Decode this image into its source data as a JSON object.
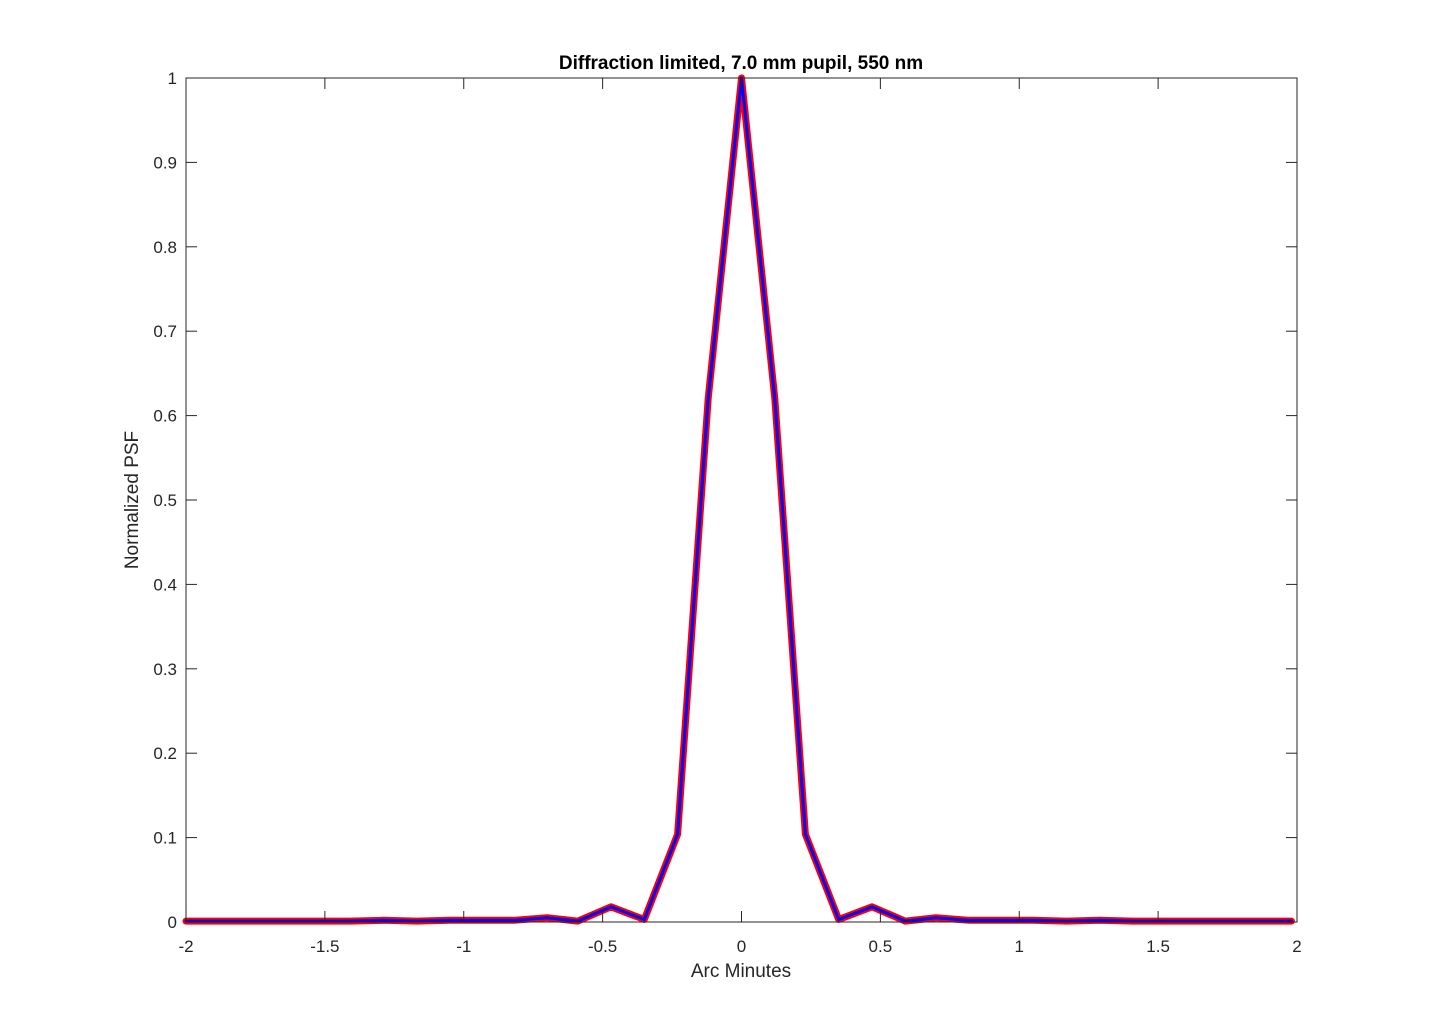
{
  "chart_data": {
    "type": "line",
    "title": "Diffraction limited, 7.0 mm pupil, 550 nm",
    "xlabel": "Arc Minutes",
    "ylabel": "Normalized PSF",
    "xlim": [
      -2,
      2
    ],
    "ylim": [
      0,
      1
    ],
    "xticks": [
      -2,
      -1.5,
      -1,
      -0.5,
      0,
      0.5,
      1,
      1.5,
      2
    ],
    "xtick_labels": [
      "-2",
      "-1.5",
      "-1",
      "-0.5",
      "0",
      "0.5",
      "1",
      "1.5",
      "2"
    ],
    "yticks": [
      0,
      0.1,
      0.2,
      0.3,
      0.4,
      0.5,
      0.6,
      0.7,
      0.8,
      0.9,
      1
    ],
    "ytick_labels": [
      "0",
      "0.1",
      "0.2",
      "0.3",
      "0.4",
      "0.5",
      "0.6",
      "0.7",
      "0.8",
      "0.9",
      "1"
    ],
    "grid": false,
    "box": true,
    "x": [
      -2.0,
      -1.88,
      -1.76,
      -1.64,
      -1.52,
      -1.41,
      -1.29,
      -1.17,
      -1.05,
      -0.94,
      -0.82,
      -0.7,
      -0.59,
      -0.47,
      -0.35,
      -0.23,
      -0.12,
      0.0,
      0.12,
      0.23,
      0.35,
      0.47,
      0.59,
      0.7,
      0.82,
      0.94,
      1.05,
      1.17,
      1.29,
      1.41,
      1.52,
      1.64,
      1.76,
      1.88,
      1.98
    ],
    "series": [
      {
        "color": "#ff0000",
        "values": [
          0.001,
          0.001,
          0.001,
          0.001,
          0.001,
          0.001,
          0.002,
          0.001,
          0.002,
          0.002,
          0.002,
          0.005,
          0.001,
          0.018,
          0.003,
          0.104,
          0.62,
          1.0,
          0.62,
          0.104,
          0.003,
          0.018,
          0.001,
          0.005,
          0.002,
          0.002,
          0.002,
          0.001,
          0.002,
          0.001,
          0.001,
          0.001,
          0.001,
          0.001,
          0.001
        ]
      },
      {
        "color": "#0000ff",
        "values": [
          0.001,
          0.001,
          0.001,
          0.001,
          0.001,
          0.001,
          0.002,
          0.001,
          0.002,
          0.002,
          0.002,
          0.005,
          0.001,
          0.018,
          0.003,
          0.104,
          0.62,
          1.0,
          0.62,
          0.104,
          0.003,
          0.018,
          0.001,
          0.005,
          0.002,
          0.002,
          0.002,
          0.001,
          0.002,
          0.001,
          0.001,
          0.001,
          0.001,
          0.001,
          0.001
        ]
      }
    ]
  }
}
